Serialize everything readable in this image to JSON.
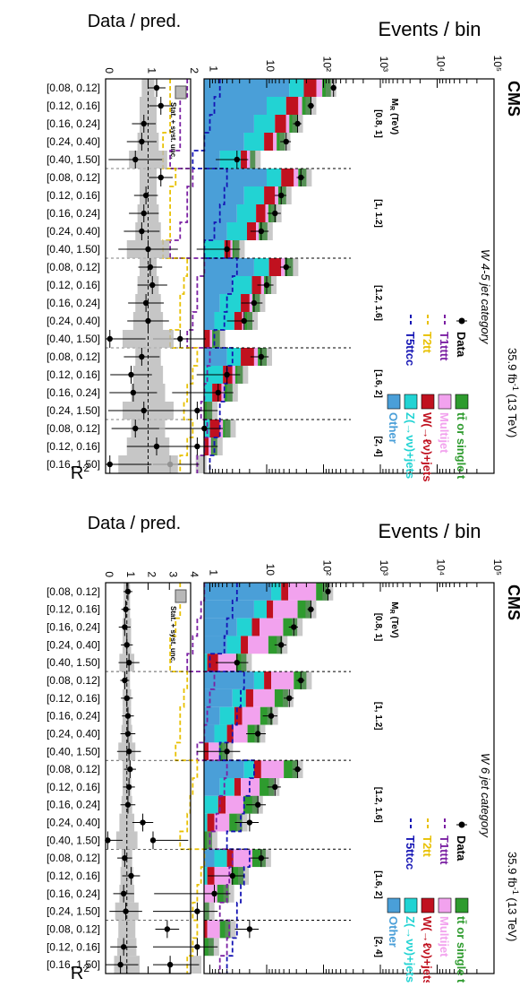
{
  "chart_data": [
    {
      "type": "bar",
      "experiment": "CMS",
      "lumi": "35.9 fb",
      "lumi_sup": "-1",
      "energy": " (13 TeV)",
      "category": "W 4-5 jet category",
      "ylabel_top": "Events / bin",
      "ylabel_ratio": "Data / pred.",
      "xlabel": "R",
      "xlabel_sup": "2",
      "mr_label": "M",
      "mr_sub": "R",
      "mr_unit": " (TeV)",
      "yscale": "log",
      "ylim": [
        0.1,
        100000
      ],
      "yticks": [
        "10⁵",
        "10⁴",
        "10³",
        "10²",
        "10",
        "1"
      ],
      "ratio_ylim": [
        0,
        2
      ],
      "ratio_yticks": [
        "2",
        "1",
        "0"
      ],
      "ratio_unc_label": "Stat. + syst. unc.",
      "mr_bins": [
        "[0.8, 1]",
        "[1, 1.2]",
        "[1.2, 1.6]",
        "[1.6, 2]",
        "[2, 4]"
      ],
      "mr_group_sizes": [
        5,
        5,
        5,
        4,
        3
      ],
      "categories": [
        "[0.08, 0.12]",
        "[0.12, 0.16]",
        "[0.16, 0.24]",
        "[0.24, 0.40]",
        "[0.40, 1.50]",
        "[0.08, 0.12]",
        "[0.12, 0.16]",
        "[0.16, 0.24]",
        "[0.24, 0.40]",
        "[0.40, 1.50]",
        "[0.08, 0.12]",
        "[0.12, 0.16]",
        "[0.16, 0.24]",
        "[0.24, 0.40]",
        "[0.40, 1.50]",
        "[0.08, 0.12]",
        "[0.12, 0.16]",
        "[0.16, 0.24]",
        "[0.24, 1.50]",
        "[0.08, 0.12]",
        "[0.12, 0.16]",
        "[0.16, 1.50]"
      ],
      "stack": [
        {
          "name": "Other",
          "color": "#4a9fd8",
          "values": [
            25,
            10,
            6,
            4,
            1.5,
            10,
            4,
            3,
            2,
            0.8,
            6,
            2.5,
            1.5,
            1.2,
            0.3,
            2,
            0.8,
            0.5,
            0.2,
            0.6,
            0.4,
            0.2
          ]
        },
        {
          "name": "Z(→νν)+jets",
          "color": "#22d3d3",
          "values": [
            20,
            12,
            8,
            5,
            2,
            8,
            5,
            3.5,
            2.5,
            1,
            5,
            3,
            2,
            1.5,
            0.4,
            1.5,
            0.9,
            0.6,
            0.3,
            0.4,
            0.3,
            0.2
          ]
        },
        {
          "name": "W(→ℓν)+jets",
          "color": "#c0111f",
          "values": [
            30,
            14,
            8,
            4,
            1,
            12,
            5,
            3,
            2,
            0.5,
            7,
            2.5,
            1.5,
            1,
            0.3,
            2.5,
            0.8,
            0.5,
            0.2,
            0.5,
            0.25,
            0.1
          ]
        },
        {
          "name": "Multijet",
          "color": "#f2a2ee",
          "values": [
            20,
            6,
            3,
            2,
            0.6,
            6,
            2,
            1.2,
            0.8,
            0.2,
            3,
            1,
            0.6,
            0.4,
            0.1,
            1,
            0.3,
            0.2,
            0.1,
            0.2,
            0.1,
            0.05
          ]
        },
        {
          "name": "tt̄ or single t",
          "color": "#2e9b2e",
          "values": [
            40,
            18,
            10,
            6,
            1.2,
            14,
            6,
            4,
            3,
            0.8,
            8,
            3,
            2,
            1.5,
            0.4,
            3,
            1,
            0.7,
            0.3,
            0.6,
            0.3,
            0.15
          ]
        }
      ],
      "data": [
        150,
        60,
        35,
        22,
        3,
        40,
        18,
        14,
        8,
        2,
        22,
        10,
        6,
        4,
        0.3,
        8,
        2,
        1.4,
        0.6,
        0.8,
        0.6,
        0.2
      ],
      "signals": [
        {
          "name": "T1tttt",
          "color": "#7a1fa2",
          "values": [
            0.4,
            0.3,
            0.3,
            0.3,
            0.2,
            0.5,
            0.4,
            0.4,
            0.3,
            0.2,
            0.8,
            0.6,
            0.6,
            0.5,
            0.4,
            1,
            0.9,
            0.8,
            0.7,
            0.9,
            0.8,
            0.6
          ]
        },
        {
          "name": "T2tt",
          "color": "#e8c000",
          "values": [
            0.2,
            0.2,
            0.2,
            0.15,
            0.15,
            0.25,
            0.2,
            0.2,
            0.2,
            0.15,
            0.4,
            0.35,
            0.3,
            0.3,
            0.2,
            0.6,
            0.5,
            0.4,
            0.35,
            0.5,
            0.4,
            0.3
          ]
        },
        {
          "name": "T5ttcc",
          "color": "#1414b4",
          "values": [
            1.5,
            1.2,
            1,
            0.8,
            0.5,
            2,
            1.8,
            1.5,
            1.2,
            0.8,
            3,
            2.5,
            2,
            1.8,
            1.2,
            2.5,
            2,
            1.8,
            1.5,
            1.5,
            1.2,
            1
          ]
        }
      ],
      "ratio": [
        1.2,
        1.3,
        0.9,
        0.85,
        0.7,
        1.3,
        0.95,
        0.9,
        0.85,
        1.0,
        1.05,
        1.1,
        0.95,
        1.0,
        0.1,
        0.85,
        0.6,
        0.65,
        0.9,
        0.7,
        1.2,
        0.1
      ],
      "ratio_unc": [
        0.15,
        0.2,
        0.2,
        0.25,
        0.45,
        0.2,
        0.2,
        0.25,
        0.3,
        0.5,
        0.2,
        0.25,
        0.3,
        0.35,
        0.6,
        0.3,
        0.35,
        0.4,
        0.6,
        0.4,
        0.5,
        0.7
      ],
      "legend": {
        "data": "Data",
        "T1tttt": "T1tttt",
        "T2tt": "T2tt",
        "T5ttcc": "T5ttcc",
        "top": "tt̄ or single t",
        "multijet": "Multijet",
        "wjets": "W(→ℓν)+jets",
        "zvv": "Z(→νν)+jets",
        "other": "Other"
      }
    },
    {
      "type": "bar",
      "experiment": "CMS",
      "lumi": "35.9 fb",
      "lumi_sup": "-1",
      "energy": " (13 TeV)",
      "category": "W 6 jet category",
      "ylabel_top": "Events / bin",
      "ylabel_ratio": "Data / pred.",
      "xlabel": "R",
      "xlabel_sup": "2",
      "mr_label": "M",
      "mr_sub": "R",
      "mr_unit": " (TeV)",
      "yscale": "log",
      "ylim": [
        0.1,
        100000
      ],
      "yticks": [
        "10⁵",
        "10⁴",
        "10³",
        "10²",
        "10",
        "1"
      ],
      "ratio_ylim": [
        0,
        4
      ],
      "ratio_yticks": [
        "4",
        "3",
        "2",
        "1",
        "0"
      ],
      "ratio_unc_label": "Stat. + syst. unc.",
      "mr_bins": [
        "[0.8, 1]",
        "[1, 1.2]",
        "[1.2, 1.6]",
        "[1.6, 2]",
        "[2, 4]"
      ],
      "mr_group_sizes": [
        5,
        5,
        5,
        4,
        3
      ],
      "categories": [
        "[0.08, 0.12]",
        "[0.12, 0.16]",
        "[0.16, 0.24]",
        "[0.24, 0.40]",
        "[0.40, 1.50]",
        "[0.08, 0.12]",
        "[0.12, 0.16]",
        "[0.16, 0.24]",
        "[0.24, 0.40]",
        "[0.40, 1.50]",
        "[0.08, 0.12]",
        "[0.12, 0.16]",
        "[0.16, 0.24]",
        "[0.24, 0.40]",
        "[0.40, 1.50]",
        "[0.08, 0.12]",
        "[0.12, 0.16]",
        "[0.16, 0.24]",
        "[0.24, 1.50]",
        "[0.08, 0.12]",
        "[0.12, 0.16]",
        "[0.16, 1.50]"
      ],
      "stack": [
        {
          "name": "Other",
          "color": "#4a9fd8",
          "values": [
            12,
            6,
            3,
            2,
            0.5,
            6,
            2.5,
            1.5,
            1.2,
            0.4,
            4,
            1.5,
            0.8,
            0.5,
            0.15,
            1.2,
            0.5,
            0.3,
            0.15,
            0.4,
            0.2,
            0.12
          ]
        },
        {
          "name": "Z(→νν)+jets",
          "color": "#22d3d3",
          "values": [
            6,
            4,
            2.5,
            1.5,
            0.4,
            3,
            1.8,
            1.2,
            0.8,
            0.25,
            2,
            1.2,
            0.6,
            0.4,
            0.12,
            0.8,
            0.4,
            0.25,
            0.12,
            0.3,
            0.15,
            0.1
          ]
        },
        {
          "name": "W(→ℓν)+jets",
          "color": "#c0111f",
          "values": [
            6,
            3,
            2,
            1.2,
            0.5,
            3,
            1.5,
            1,
            0.6,
            0.3,
            2,
            0.8,
            0.5,
            0.3,
            0.12,
            0.6,
            0.3,
            0.2,
            0.1,
            0.2,
            0.12,
            0.08
          ]
        },
        {
          "name": "Multijet",
          "color": "#f2a2ee",
          "values": [
            50,
            22,
            12,
            6,
            1.5,
            18,
            8,
            4,
            2,
            0.5,
            12,
            4,
            2,
            1,
            0.3,
            3,
            1.2,
            0.6,
            0.3,
            0.6,
            0.3,
            0.12
          ]
        },
        {
          "name": "tt̄ or single t",
          "color": "#2e9b2e",
          "values": [
            45,
            25,
            15,
            8,
            1.5,
            20,
            10,
            5,
            3,
            0.6,
            15,
            6,
            3,
            1.5,
            0.4,
            4,
            1.5,
            0.8,
            0.3,
            0.8,
            0.4,
            0.15
          ]
        }
      ],
      "data": [
        120,
        60,
        30,
        18,
        3,
        40,
        25,
        12,
        7,
        2,
        35,
        14,
        7,
        5,
        0.1,
        8,
        2.5,
        1.2,
        0.6,
        5,
        0.6,
        0.2
      ],
      "signals": [
        {
          "name": "T1tttt",
          "color": "#7a1fa2",
          "values": [
            0.8,
            0.7,
            0.6,
            0.5,
            0.4,
            1.2,
            1,
            0.9,
            0.8,
            0.6,
            2,
            1.8,
            1.5,
            1.3,
            1,
            2.5,
            2.2,
            2,
            1.5,
            2.2,
            2,
            1.5
          ]
        },
        {
          "name": "T2tt",
          "color": "#e8c000",
          "values": [
            0.3,
            0.3,
            0.25,
            0.2,
            0.2,
            0.4,
            0.35,
            0.3,
            0.3,
            0.25,
            0.6,
            0.5,
            0.45,
            0.4,
            0.3,
            0.8,
            0.7,
            0.6,
            0.5,
            0.6,
            0.5,
            0.4
          ]
        },
        {
          "name": "T5ttcc",
          "color": "#1414b4",
          "values": [
            3,
            2.5,
            2,
            1.8,
            1,
            4,
            3.5,
            3,
            2.5,
            1.5,
            6,
            5,
            4,
            3.5,
            2,
            5,
            4,
            3.5,
            3,
            3,
            2.5,
            2
          ]
        }
      ],
      "ratio": [
        1.05,
        0.95,
        0.9,
        1.0,
        1.1,
        0.9,
        1.0,
        1.05,
        1.05,
        1.1,
        1.15,
        1.1,
        1.05,
        1.75,
        0.1,
        0.9,
        1.2,
        0.85,
        0.95,
        2.9,
        0.85,
        0.7
      ],
      "ratio_unc": [
        0.15,
        0.15,
        0.2,
        0.2,
        0.35,
        0.15,
        0.2,
        0.2,
        0.25,
        0.4,
        0.2,
        0.2,
        0.25,
        0.35,
        0.5,
        0.25,
        0.3,
        0.35,
        0.55,
        0.4,
        0.45,
        0.6
      ],
      "legend": {
        "data": "Data",
        "T1tttt": "T1tttt",
        "T2tt": "T2tt",
        "T5ttcc": "T5ttcc",
        "top": "tt̄ or single t",
        "multijet": "Multijet",
        "wjets": "W(→ℓν)+jets",
        "zvv": "Z(→νν)+jets",
        "other": "Other"
      }
    }
  ]
}
